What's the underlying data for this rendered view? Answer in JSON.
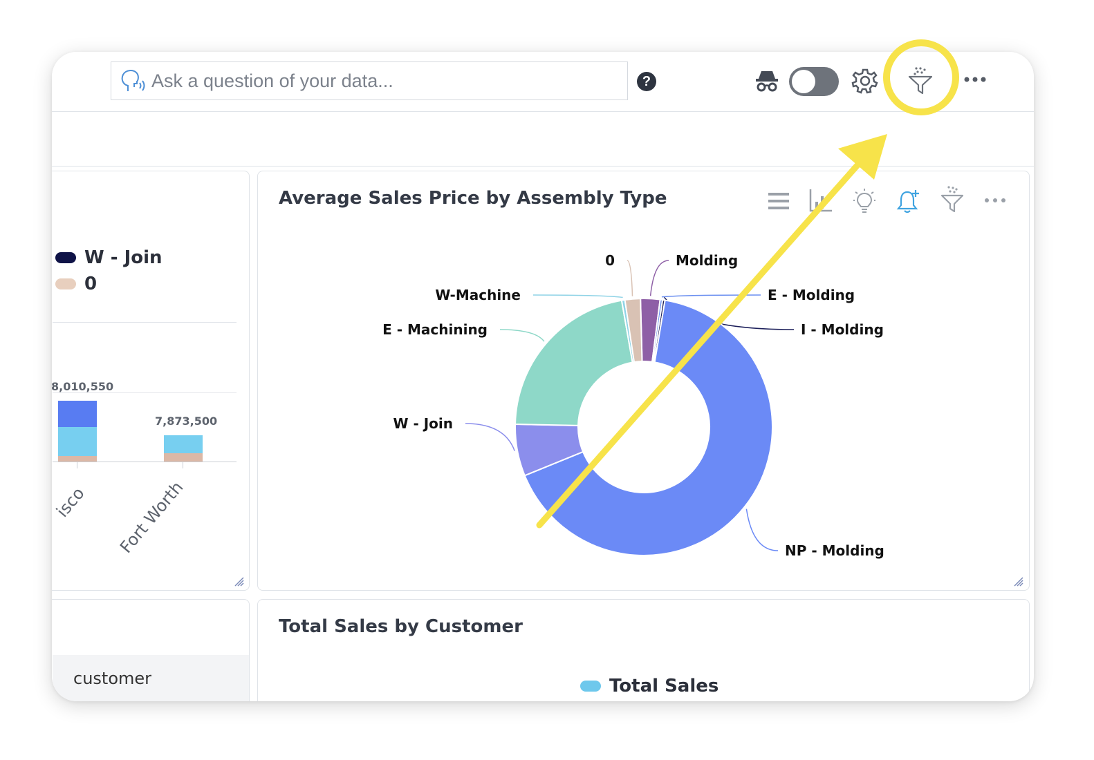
{
  "search": {
    "placeholder": "Ask a question of your data..."
  },
  "header_icons": [
    "voice-question-icon",
    "help-icon",
    "incognito-icon",
    "settings-gear-icon",
    "filter-icon",
    "more-menu-icon"
  ],
  "toggle": {
    "state": "off"
  },
  "left_panel": {
    "legend": [
      {
        "label": "W - Join",
        "color": "#0f1347"
      },
      {
        "label": "0",
        "color": "#e8cfbe"
      }
    ],
    "bars": [
      {
        "category": "San Francisco",
        "visible_label": "isco",
        "total_label": "8,010,550"
      },
      {
        "category": "Fort Worth",
        "visible_label": "Fort Worth",
        "total_label": "7,873,500"
      }
    ]
  },
  "donut_panel": {
    "title": "Average Sales Price by Assembly Type",
    "toolbar_icons": [
      "list-icon",
      "chart-type-icon",
      "insight-bulb-icon",
      "add-alert-icon",
      "filter-icon",
      "more-menu-icon"
    ]
  },
  "chart_data": {
    "type": "pie",
    "variant": "donut",
    "title": "Average Sales Price by Assembly Type",
    "slices": [
      {
        "label": "Molding",
        "value": 2.4,
        "color": "#8e5fa6"
      },
      {
        "label": "E - Molding",
        "value": 0.3,
        "color": "#6b8ff0"
      },
      {
        "label": "I - Molding",
        "value": 0.3,
        "color": "#1c1f5a"
      },
      {
        "label": "NP - Molding",
        "value": 65.0,
        "color": "#6b8af6"
      },
      {
        "label": "W - Join",
        "value": 6.4,
        "color": "#8b8eec"
      },
      {
        "label": "E - Machining",
        "value": 21.5,
        "color": "#8ed8c8"
      },
      {
        "label": "W-Machine",
        "value": 0.4,
        "color": "#8fd3e6"
      },
      {
        "label": "0",
        "value": 1.9,
        "color": "#d9c2b4"
      }
    ]
  },
  "bottom_left_panel": {
    "column_header": "customer"
  },
  "bottom_panel": {
    "title": "Total Sales by Customer",
    "legend": [
      {
        "label": "Total Sales",
        "color": "#6ec8ec"
      }
    ]
  },
  "annotation": {
    "highlight_color": "#f7e34a",
    "points_to": "filter-icon"
  }
}
